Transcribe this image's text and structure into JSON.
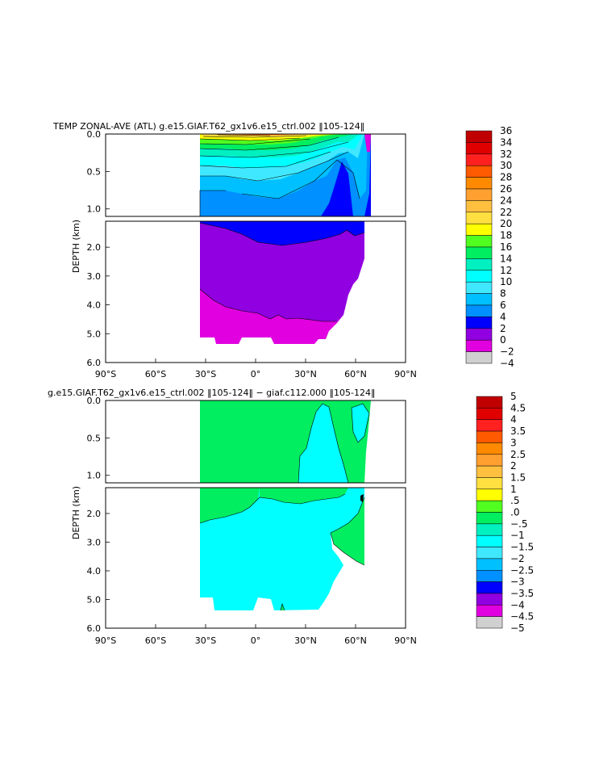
{
  "chart_data": [
    {
      "type": "heatmap",
      "title": "TEMP ZONAL-AVE (ATL) g.e15.GIAF.T62_gx1v6.e15_ctrl.002 ‖105-124‖",
      "ylabel": "DEPTH (km)",
      "xlabel": "",
      "x_ticks": [
        "90°S",
        "60°S",
        "30°S",
        "0°",
        "30°N",
        "60°N",
        "90°N"
      ],
      "y_ticks_upper": [
        "0.0",
        "0.5",
        "1.0"
      ],
      "y_ticks_lower": [
        "2.0",
        "3.0",
        "4.0",
        "5.0",
        "6.0"
      ],
      "xlim": [
        -90,
        90
      ],
      "ylim": [
        0,
        6
      ],
      "colorbar": {
        "labels": [
          "36",
          "34",
          "32",
          "30",
          "28",
          "26",
          "24",
          "22",
          "20",
          "18",
          "16",
          "14",
          "12",
          "10",
          "8",
          "6",
          "4",
          "2",
          "0",
          "−2",
          "−4"
        ],
        "colors": [
          "#c00000",
          "#e00000",
          "#ff2020",
          "#ff5a00",
          "#ff8a00",
          "#ffa030",
          "#ffc040",
          "#ffe040",
          "#ffff00",
          "#50ff20",
          "#00ee60",
          "#00f0c0",
          "#00ffff",
          "#40e8ff",
          "#00c0ff",
          "#0090ff",
          "#0000ff",
          "#9000e0",
          "#e000e0",
          "#d0d0d0",
          "#707070"
        ]
      }
    },
    {
      "type": "heatmap",
      "title": "g.e15.GIAF.T62_gx1v6.e15_ctrl.002 ‖105-124‖ − giaf.c112.000 ‖105-124‖",
      "ylabel": "DEPTH (km)",
      "xlabel": "",
      "x_ticks": [
        "90°S",
        "60°S",
        "30°S",
        "0°",
        "30°N",
        "60°N",
        "90°N"
      ],
      "y_ticks_upper": [
        "0.0",
        "0.5",
        "1.0"
      ],
      "y_ticks_lower": [
        "2.0",
        "3.0",
        "4.0",
        "5.0",
        "6.0"
      ],
      "xlim": [
        -90,
        90
      ],
      "ylim": [
        0,
        6
      ],
      "colorbar": {
        "labels": [
          "5",
          "4.5",
          "4",
          "3.5",
          "3",
          "2.5",
          "2",
          "1.5",
          "1",
          ".5",
          ".0",
          "−.5",
          "−1",
          "−1.5",
          "−2",
          "−2.5",
          "−3",
          "−3.5",
          "−4",
          "−4.5",
          "−5"
        ],
        "colors": [
          "#c00000",
          "#e00000",
          "#ff2020",
          "#ff5a00",
          "#ff8a00",
          "#ffa030",
          "#ffc040",
          "#ffe040",
          "#ffff00",
          "#50ff20",
          "#00ee60",
          "#00f0c0",
          "#00ffff",
          "#40e8ff",
          "#00c0ff",
          "#0090ff",
          "#0000ff",
          "#9000e0",
          "#e000e0",
          "#d0d0d0",
          "#707070"
        ]
      }
    }
  ]
}
